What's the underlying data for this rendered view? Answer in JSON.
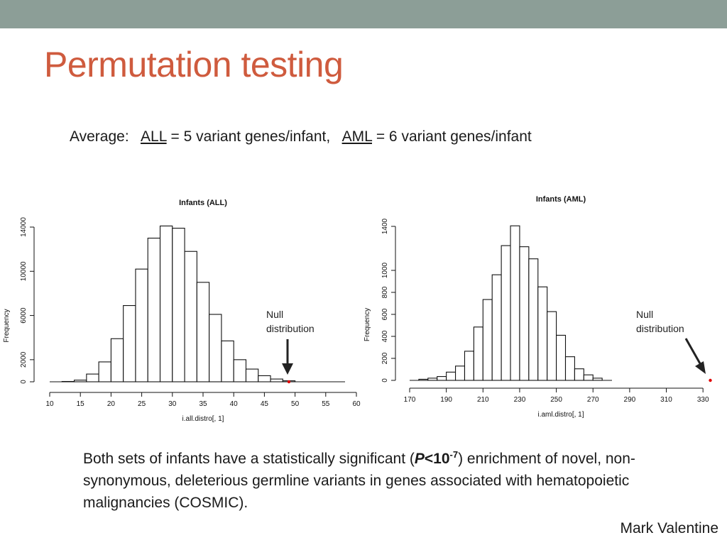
{
  "slide": {
    "title": "Permutation testing",
    "average": {
      "prefix": "Average:",
      "all_label": "ALL",
      "all_text": "= 5 variant genes/infant,",
      "aml_label": "AML",
      "aml_text": "= 6 variant genes/infant"
    },
    "caption": {
      "part1": "Both sets of infants have a statistically significant (",
      "p_symbol": "P",
      "p_op": "<10",
      "p_exp": "-7",
      "part2": ") enrichment of novel, non-synonymous, deleterious germline variants in genes associated with hematopoietic malignancies (COSMIC)."
    },
    "author": "Mark Valentine"
  },
  "chart_data": [
    {
      "type": "bar",
      "title": "Infants (ALL)",
      "xlabel": "i.all.distro[, 1]",
      "ylabel": "Frequency",
      "xlim": [
        10,
        60
      ],
      "ylim": [
        0,
        14000
      ],
      "bin_width": 2,
      "bins_start": [
        12,
        14,
        16,
        18,
        20,
        22,
        24,
        26,
        28,
        30,
        32,
        34,
        36,
        38,
        40,
        42,
        44,
        46,
        48
      ],
      "values": [
        30,
        150,
        700,
        1800,
        3900,
        6900,
        10200,
        13000,
        14100,
        13900,
        11800,
        9000,
        6100,
        3700,
        2000,
        1150,
        550,
        250,
        90
      ],
      "x_ticks": [
        10,
        15,
        20,
        25,
        30,
        35,
        40,
        45,
        50,
        55,
        60
      ],
      "y_ticks": [
        0,
        2000,
        6000,
        10000,
        14000
      ],
      "observed_value": 49,
      "observed_color": "#e00000",
      "annotation": "Null\ndistribution"
    },
    {
      "type": "bar",
      "title": "Infants (AML)",
      "xlabel": "i.aml.distro[, 1]",
      "ylabel": "Frequency",
      "xlim": [
        170,
        340
      ],
      "ylim": [
        0,
        1400
      ],
      "bin_width": 5,
      "bins_start": [
        175,
        180,
        185,
        190,
        195,
        200,
        205,
        210,
        215,
        220,
        225,
        230,
        235,
        240,
        245,
        250,
        255,
        260,
        265,
        270
      ],
      "values": [
        10,
        20,
        35,
        75,
        130,
        265,
        485,
        735,
        960,
        1225,
        1405,
        1215,
        1105,
        850,
        625,
        410,
        215,
        105,
        50,
        20
      ],
      "x_ticks": [
        170,
        190,
        210,
        230,
        250,
        270,
        290,
        310,
        330
      ],
      "y_ticks": [
        0,
        200,
        400,
        600,
        800,
        1000,
        1400
      ],
      "observed_value": 334,
      "observed_color": "#e00000",
      "annotation": "Null\ndistribution"
    }
  ]
}
